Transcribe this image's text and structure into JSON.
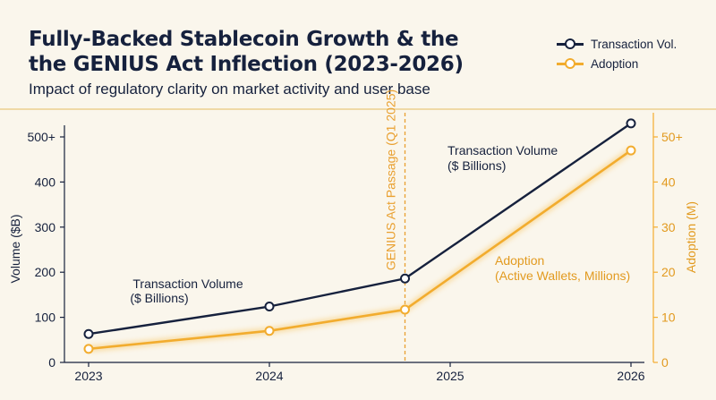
{
  "header": {
    "title_line1": "Fully-Backed Stablecoin Growth & the",
    "title_line2": "the GENIUS Act Inflection (2023-2026)",
    "subtitle": "Impact of regulatory clarity on market activity and user base"
  },
  "legend": [
    {
      "label": "Transaction Vol.",
      "color": "#16213d"
    },
    {
      "label": "Adoption",
      "color": "#f2ac2e"
    }
  ],
  "chart_data": {
    "type": "line",
    "x": [
      2023,
      2024,
      2024.75,
      2026
    ],
    "x_ticks": [
      "2023",
      "2024",
      "2025",
      "2026"
    ],
    "xlim": [
      2023,
      2026
    ],
    "series": [
      {
        "name": "Transaction Volume ($ Billions)",
        "axis": "left",
        "color": "#16213d",
        "values": [
          63,
          124,
          186,
          530
        ]
      },
      {
        "name": "Adoption (Active Wallets, Millions)",
        "axis": "right",
        "color": "#f2ac2e",
        "values": [
          3,
          7,
          11.7,
          47
        ]
      }
    ],
    "ylabel_left": "Volume ($B)",
    "ylabel_right": "Adoption (M)",
    "ylim_left": [
      0,
      500
    ],
    "ylim_right": [
      0,
      50
    ],
    "yticks_left": [
      "0",
      "100",
      "200",
      "300",
      "400",
      "500+"
    ],
    "yticks_right": [
      "0",
      "10",
      "20",
      "30",
      "40",
      "50+"
    ],
    "annotations": {
      "event_line": {
        "x": 2024.75,
        "label": "GENIUS Act Passage (Q1 2025)",
        "color": "#e9a030"
      },
      "volume_label_left": [
        "Transaction Volume",
        "($ Billions)"
      ],
      "volume_label_right": [
        "Transaction Volume",
        "($ Billions)"
      ],
      "adoption_label": [
        "Adoption",
        "(Active Wallets, Millions)"
      ]
    },
    "grid": false,
    "legend_position": "top-right"
  }
}
